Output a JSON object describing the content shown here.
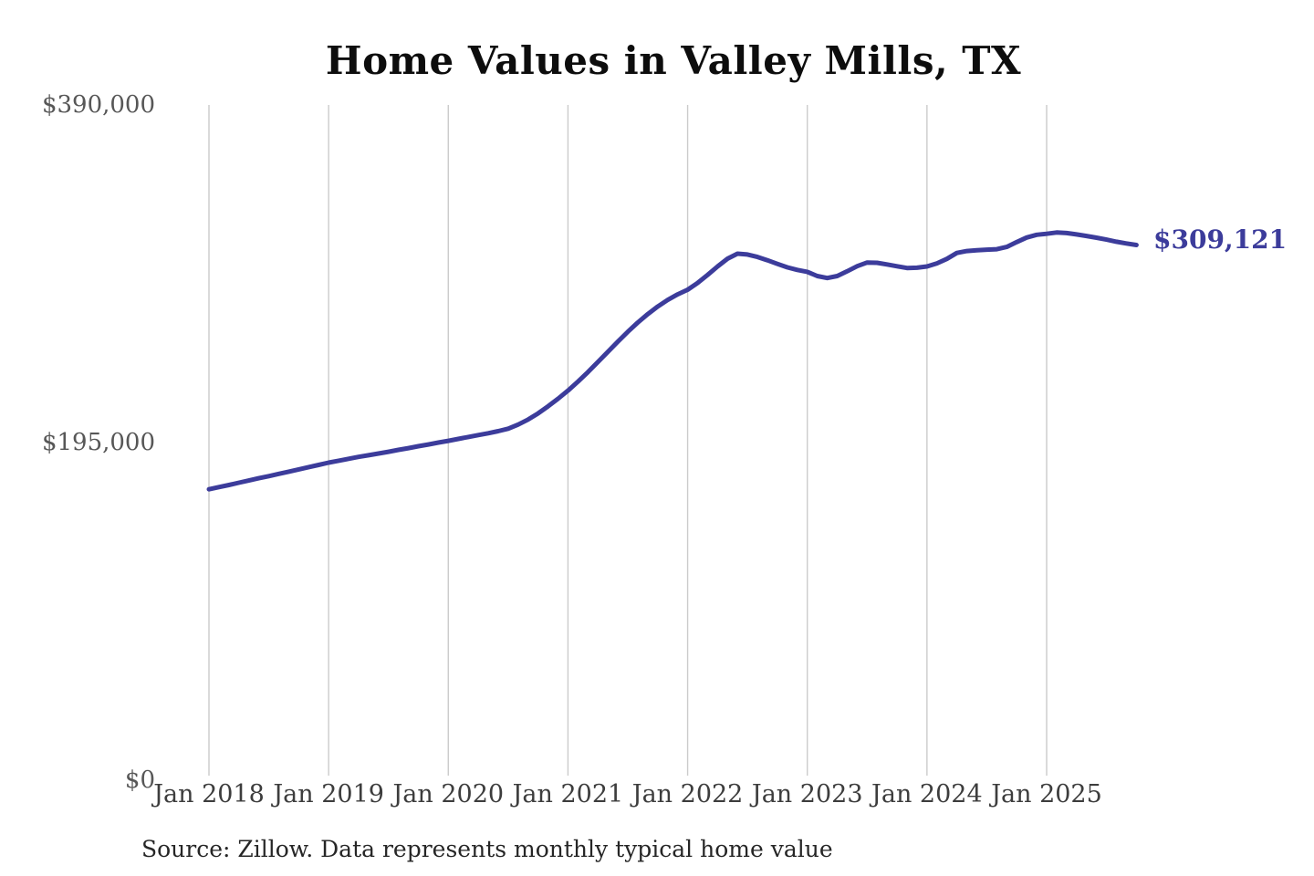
{
  "header": {
    "title": "Home Values in Valley Mills, TX"
  },
  "chart_data": {
    "type": "line",
    "title": "Home Values in Valley Mills, TX",
    "xlabel": "",
    "ylabel": "",
    "x_unit": "month",
    "x_start": "2018-01",
    "x_interval": "1 month",
    "n_points": 94,
    "x_end": "2025-10",
    "x_tick_labels": [
      "Jan 2018",
      "Jan 2019",
      "Jan 2020",
      "Jan 2021",
      "Jan 2022",
      "Jan 2023",
      "Jan 2024",
      "Jan 2025"
    ],
    "y_tick_labels": [
      "$390,000",
      "$195,000",
      "$0"
    ],
    "y_tick_values": [
      390000,
      195000,
      0
    ],
    "ylim": [
      0,
      390000
    ],
    "grid": "vertical-only",
    "legend": "none",
    "end_label": "$309,121",
    "end_value": 309121,
    "series": [
      {
        "name": "Monthly typical home value",
        "color": "#3c3c9b",
        "values": [
          168000,
          169300,
          170500,
          171800,
          173100,
          174400,
          175600,
          176900,
          178200,
          179500,
          180800,
          182100,
          183400,
          184500,
          185600,
          186700,
          187700,
          188700,
          189700,
          190800,
          191800,
          192900,
          193900,
          195000,
          196000,
          197100,
          198200,
          199300,
          200400,
          201600,
          203000,
          205400,
          208300,
          211800,
          215900,
          220300,
          225000,
          230200,
          235700,
          241500,
          247400,
          253300,
          259000,
          264300,
          269200,
          273600,
          277400,
          280600,
          283300,
          287200,
          291800,
          296700,
          301200,
          304100,
          303600,
          302200,
          300300,
          298200,
          296200,
          294700,
          293600,
          291200,
          290000,
          291200,
          293900,
          296900,
          299000,
          298800,
          297900,
          296800,
          295800,
          296000,
          296700,
          298500,
          301100,
          304500,
          305600,
          306100,
          306400,
          306700,
          308000,
          310800,
          313400,
          315000,
          315600,
          316300,
          316000,
          315200,
          314300,
          313300,
          312200,
          311000,
          310000,
          309121
        ]
      }
    ],
    "colors": {
      "line": "#3c3c9b",
      "gridline": "#cbcbcb",
      "end_label": "#3c3c9b",
      "background": "#ffffff"
    }
  },
  "footer": {
    "source": "Source: Zillow. Data represents monthly typical home value"
  }
}
